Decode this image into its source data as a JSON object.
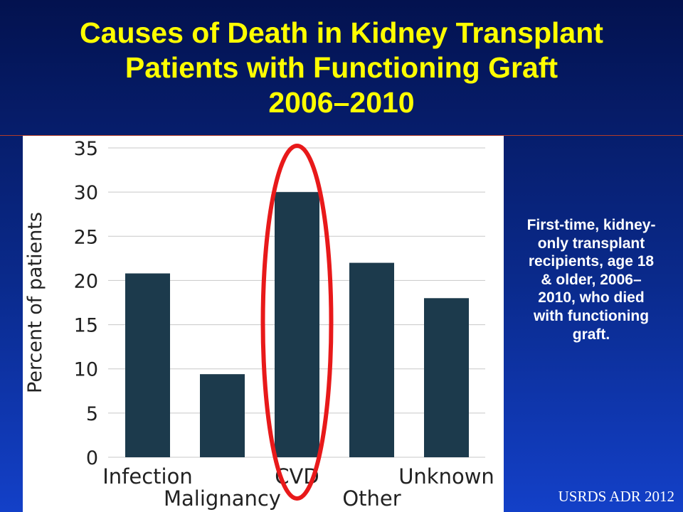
{
  "title": {
    "line1": "Causes of Death in Kidney Transplant",
    "line2": "Patients with Functioning Graft",
    "line3": "2006–2010"
  },
  "side_note": "First-time, kidney-only transplant recipients, age 18 & older, 2006–2010, who died with functioning graft.",
  "source": "USRDS ADR 2012",
  "colors": {
    "bar": "#1c3a4c",
    "highlight_ellipse": "#e8191a",
    "title": "#ffff00"
  },
  "chart_data": {
    "type": "bar",
    "title": "",
    "xlabel": "",
    "ylabel": "Percent of patients",
    "categories": [
      "Infection",
      "Malignancy",
      "CVD",
      "Other",
      "Unknown"
    ],
    "values": [
      20.8,
      9.4,
      30,
      22,
      18
    ],
    "ylim": [
      0,
      35
    ],
    "yticks": [
      0,
      5,
      10,
      15,
      20,
      25,
      30,
      35
    ],
    "grid": true,
    "highlighted_category": "CVD"
  }
}
